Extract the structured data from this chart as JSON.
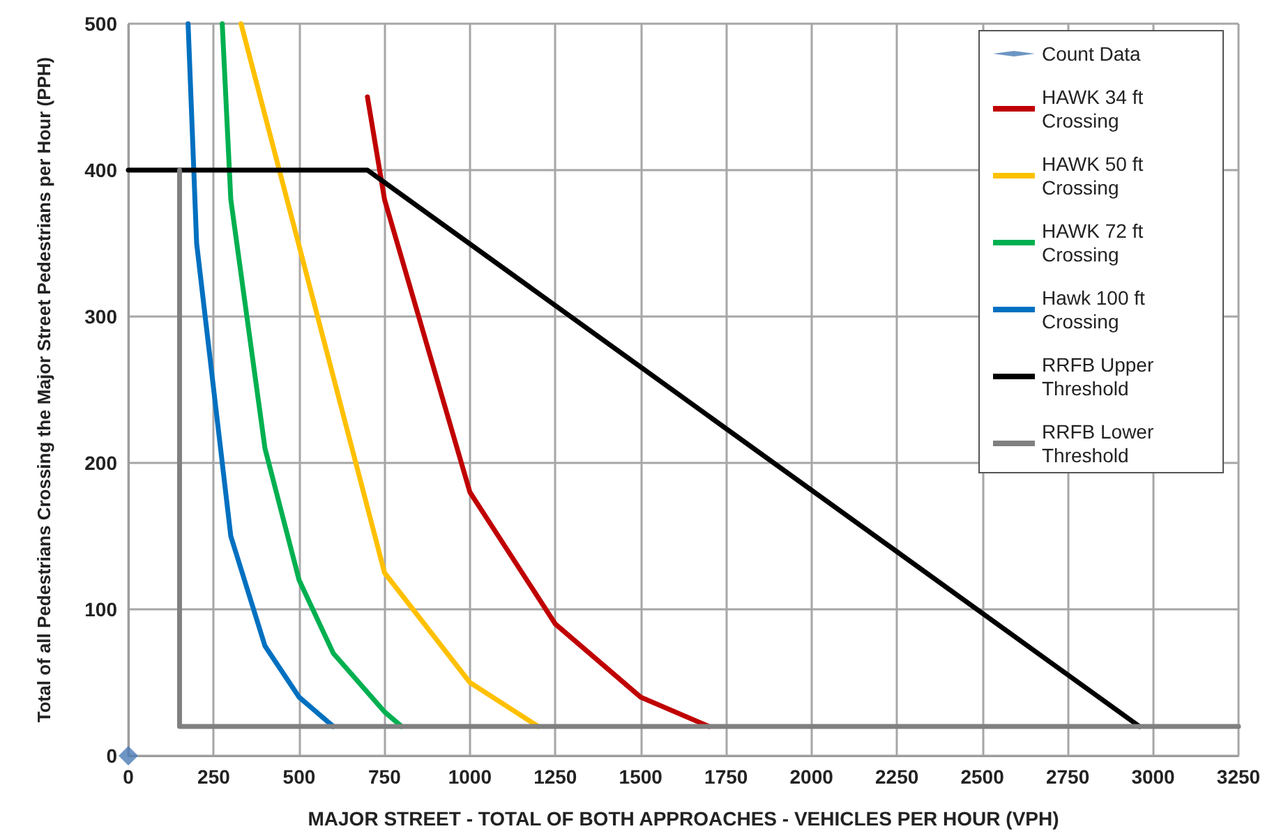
{
  "chart_data": {
    "type": "line",
    "xlabel": "MAJOR STREET - TOTAL OF BOTH APPROACHES - VEHICLES PER HOUR (VPH)",
    "ylabel": "Total of all Pedestrians Crossing the Major Street Pedestrians per Hour (PPH)",
    "xlim": [
      0,
      3250
    ],
    "xticks": [
      0,
      250,
      500,
      750,
      1000,
      1250,
      1500,
      1750,
      2000,
      2250,
      2500,
      2750,
      3000,
      3250
    ],
    "ylim": [
      0,
      500
    ],
    "yticks": [
      0,
      100,
      200,
      300,
      400,
      500
    ],
    "grid": true,
    "legend": "top right",
    "marker": "none",
    "line_style": "solid",
    "series": [
      {
        "name": "Count Data",
        "type": "scatter",
        "marker": "diamond",
        "color": "#4a7ab5",
        "x": [
          0
        ],
        "values": [
          0
        ]
      },
      {
        "name": "HAWK 34 ft Crossing",
        "color": "#c00000",
        "x": [
          700,
          750,
          1000,
          1250,
          1500,
          1700
        ],
        "values": [
          450,
          380,
          180,
          90,
          40,
          20
        ]
      },
      {
        "name": "HAWK 50 ft Crossing",
        "color": "#ffc000",
        "x": [
          330,
          750,
          1000,
          1200
        ],
        "values": [
          500,
          125,
          50,
          20
        ]
      },
      {
        "name": "HAWK 72 ft Crossing",
        "color": "#00b050",
        "x": [
          275,
          300,
          400,
          500,
          600,
          750,
          800
        ],
        "values": [
          500,
          380,
          210,
          120,
          70,
          30,
          20
        ]
      },
      {
        "name": "Hawk 100 ft Crossing",
        "color": "#0070c0",
        "x": [
          175,
          200,
          300,
          400,
          500,
          600
        ],
        "values": [
          500,
          350,
          150,
          75,
          40,
          20
        ]
      },
      {
        "name": "RRFB Upper Threshold",
        "color": "#000000",
        "x": [
          0,
          700,
          2960
        ],
        "values": [
          400,
          400,
          20
        ]
      },
      {
        "name": "RRFB Lower Threshold",
        "color": "#808080",
        "x": [
          150,
          150,
          3250
        ],
        "values": [
          400,
          20,
          20
        ]
      }
    ]
  }
}
